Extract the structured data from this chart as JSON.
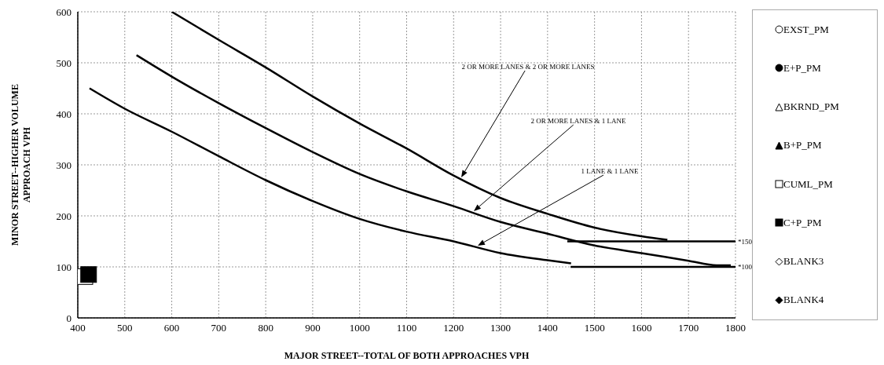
{
  "chart_data": {
    "type": "line",
    "xlabel": "MAJOR STREET--TOTAL OF BOTH APPROACHES VPH",
    "ylabel": "MINOR STREET--HIGHER VOLUME APPROACH VPH",
    "xlim": [
      400,
      1800
    ],
    "xticks": [
      400,
      500,
      600,
      700,
      800,
      900,
      1000,
      1100,
      1200,
      1300,
      1400,
      1500,
      1600,
      1700,
      1800
    ],
    "ylim": [
      0,
      600
    ],
    "yticks": [
      0,
      100,
      200,
      300,
      400,
      500,
      600
    ],
    "grid": true,
    "legend": "right",
    "line_style": "solid",
    "series": [
      {
        "type": "line",
        "color": "#000000",
        "marker": "none",
        "x": [
          600,
          700,
          800,
          900,
          1000,
          1100,
          1200,
          1300,
          1400,
          1500,
          1600,
          1655
        ],
        "values": [
          600,
          545,
          491,
          434,
          381,
          332,
          279,
          235,
          204,
          177,
          160,
          153
        ]
      },
      {
        "type": "line",
        "color": "#000000",
        "marker": "none",
        "x": [
          525,
          600,
          700,
          800,
          900,
          1000,
          1100,
          1200,
          1300,
          1400,
          1500,
          1600,
          1700,
          1760,
          1790
        ],
        "values": [
          515,
          473,
          421,
          372,
          325,
          282,
          248,
          219,
          188,
          165,
          142,
          127,
          112,
          103,
          103
        ]
      },
      {
        "type": "line",
        "color": "#000000",
        "marker": "none",
        "x": [
          425,
          500,
          600,
          700,
          800,
          900,
          1000,
          1100,
          1200,
          1300,
          1400,
          1450
        ],
        "values": [
          450,
          410,
          365,
          317,
          270,
          229,
          194,
          169,
          150,
          127,
          113,
          107
        ]
      },
      {
        "type": "line",
        "color": "#000000",
        "marker": "none",
        "x": [
          1442,
          1800
        ],
        "values": [
          150,
          150
        ]
      },
      {
        "type": "line",
        "color": "#000000",
        "marker": "none",
        "x": [
          1449,
          1800
        ],
        "values": [
          100,
          100
        ]
      },
      {
        "type": "scatter",
        "name": "EXST_PM",
        "color": "#ffffff",
        "marker": "circle"
      },
      {
        "type": "scatter",
        "name": "E+P_PM",
        "color": "#000000",
        "marker": "circle"
      },
      {
        "type": "scatter",
        "name": "BKRND_PM",
        "color": "#ffffff",
        "marker": "triangle"
      },
      {
        "type": "scatter",
        "name": "B+P_PM",
        "color": "#000000",
        "marker": "triangle"
      },
      {
        "type": "scatter",
        "name": "CUML_PM",
        "color": "#ffffff",
        "marker": "square",
        "x": [
          415
        ],
        "values": [
          81
        ]
      },
      {
        "type": "scatter",
        "name": "C+P_PM",
        "color": "#000000",
        "marker": "square",
        "x": [
          423
        ],
        "values": [
          85
        ]
      },
      {
        "type": "scatter",
        "name": "BLANK3",
        "color": "#ffffff",
        "marker": "diamond"
      },
      {
        "type": "scatter",
        "name": "BLANK4",
        "color": "#000000",
        "marker": "diamond"
      }
    ],
    "annotations": [
      "2 OR MORE LANES & 2 OR MORE LANES",
      "2 OR MORE LANES & 1 LANE",
      "1 LANE & 1 LANE",
      {
        "text": "*150",
        "x": 1800,
        "y": 150
      },
      {
        "text": "*100",
        "x": 1800,
        "y": 100
      }
    ]
  }
}
